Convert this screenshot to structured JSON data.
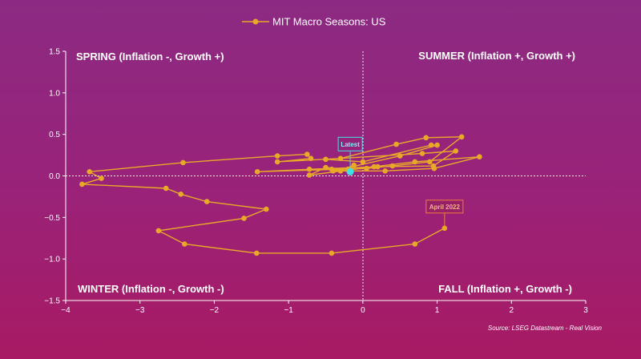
{
  "colors": {
    "series": "#e8a928",
    "latest": "#3fe0e6",
    "annotation_box": "#ee7d3e",
    "text": "#ffffff"
  },
  "chart_data": {
    "type": "line",
    "series": [
      {
        "name": "MIT Macro Seasons: US",
        "points": [
          [
            1.1,
            -0.63
          ],
          [
            0.7,
            -0.82
          ],
          [
            -0.42,
            -0.93
          ],
          [
            -1.43,
            -0.93
          ],
          [
            -2.4,
            -0.82
          ],
          [
            -2.75,
            -0.66
          ],
          [
            -1.6,
            -0.51
          ],
          [
            -1.3,
            -0.4
          ],
          [
            -2.1,
            -0.31
          ],
          [
            -2.45,
            -0.22
          ],
          [
            -2.65,
            -0.15
          ],
          [
            -3.78,
            -0.1
          ],
          [
            -3.52,
            -0.03
          ],
          [
            -3.68,
            0.05
          ],
          [
            -2.42,
            0.16
          ],
          [
            -1.15,
            0.24
          ],
          [
            -0.75,
            0.26
          ],
          [
            -0.7,
            0.21
          ],
          [
            -1.15,
            0.17
          ],
          [
            -0.3,
            0.21
          ],
          [
            0.45,
            0.38
          ],
          [
            0.85,
            0.46
          ],
          [
            1.33,
            0.47
          ],
          [
            0.9,
            0.17
          ],
          [
            0.4,
            0.12
          ],
          [
            0.05,
            0.09
          ],
          [
            -1.42,
            0.05
          ],
          [
            -0.72,
            0.08
          ],
          [
            0.2,
            0.11
          ],
          [
            0.95,
            0.12
          ],
          [
            1.25,
            0.3
          ],
          [
            0.8,
            0.27
          ],
          [
            -0.5,
            0.2
          ],
          [
            0.0,
            0.17
          ],
          [
            0.92,
            0.37
          ],
          [
            1.0,
            0.37
          ],
          [
            0.5,
            0.24
          ],
          [
            -0.4,
            0.06
          ],
          [
            0.3,
            0.06
          ],
          [
            0.96,
            0.09
          ],
          [
            1.57,
            0.23
          ],
          [
            0.7,
            0.17
          ],
          [
            0.15,
            0.11
          ],
          [
            -0.72,
            0.01
          ],
          [
            -0.5,
            0.1
          ],
          [
            -0.2,
            0.08
          ],
          [
            -0.12,
            0.13
          ],
          [
            -0.3,
            0.06
          ],
          [
            -0.42,
            0.08
          ],
          [
            -0.17,
            0.05
          ]
        ]
      }
    ],
    "title": "",
    "xlabel": "",
    "ylabel": "",
    "xlim": [
      -4,
      3
    ],
    "ylim": [
      -1.5,
      1.5
    ],
    "x_ticks": [
      -4,
      -3,
      -2,
      -1,
      0,
      1,
      2,
      3
    ],
    "y_ticks": [
      -1.5,
      -1.0,
      -0.5,
      0,
      0.5,
      1.0,
      1.5
    ],
    "x_tick_labels": [
      "−4",
      "−3",
      "−2",
      "−1",
      "0",
      "1",
      "2",
      "3"
    ],
    "y_tick_labels": [
      "−1.5",
      "−1.0",
      "−0.5",
      "0.0",
      "0.5",
      "1.0",
      "1.5"
    ],
    "legend_position": "top-center",
    "quadrants": {
      "top_left": "SPRING (Inflation -, Growth +)",
      "top_right": "SUMMER (Inflation +, Growth +)",
      "bottom_left": "WINTER (Inflation -, Growth -)",
      "bottom_right": "FALL (Inflation +, Growth -)"
    },
    "annotations": {
      "latest": {
        "label": "Latest",
        "x": -0.17,
        "y": 0.05
      },
      "start": {
        "label": "April 2022",
        "x": 1.1,
        "y": -0.63
      }
    },
    "source": "Source: LSEG Datastream - Real Vision"
  }
}
